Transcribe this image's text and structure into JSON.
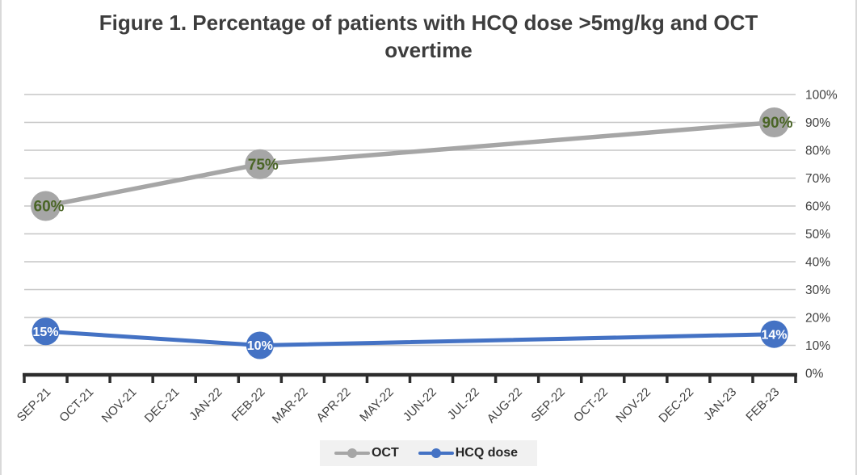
{
  "title": "Figure 1. Percentage of patients with HCQ dose >5mg/kg and OCT overtime",
  "chart_data": {
    "type": "line",
    "categories": [
      "SEP-21",
      "OCT-21",
      "NOV-21",
      "DEC-21",
      "JAN-22",
      "FEB-22",
      "MAR-22",
      "APR-22",
      "MAY-22",
      "JUN-22",
      "JUL-22",
      "AUG-22",
      "SEP-22",
      "OCT-22",
      "NOV-22",
      "DEC-22",
      "JAN-23",
      "FEB-23"
    ],
    "series": [
      {
        "name": "OCT",
        "color": "#a6a6a6",
        "label_color": "#4a6526",
        "points": [
          {
            "category": "SEP-21",
            "value": 60,
            "label": "60%"
          },
          {
            "category": "FEB-22",
            "value": 75,
            "label": "75%"
          },
          {
            "category": "FEB-23",
            "value": 90,
            "label": "90%"
          }
        ]
      },
      {
        "name": "HCQ dose",
        "color": "#4472c4",
        "label_color": "#ffffff",
        "points": [
          {
            "category": "SEP-21",
            "value": 15,
            "label": "15%"
          },
          {
            "category": "FEB-22",
            "value": 10,
            "label": "10%"
          },
          {
            "category": "FEB-23",
            "value": 14,
            "label": "14%"
          }
        ]
      }
    ],
    "y_ticks": [
      {
        "value": 0,
        "label": "0%"
      },
      {
        "value": 10,
        "label": "10%"
      },
      {
        "value": 20,
        "label": "20%"
      },
      {
        "value": 30,
        "label": "30%"
      },
      {
        "value": 40,
        "label": "40%"
      },
      {
        "value": 50,
        "label": "50%"
      },
      {
        "value": 60,
        "label": "60%"
      },
      {
        "value": 70,
        "label": "70%"
      },
      {
        "value": 80,
        "label": "80%"
      },
      {
        "value": 90,
        "label": "90%"
      },
      {
        "value": 100,
        "label": "100%"
      }
    ],
    "ylim": [
      0,
      100
    ],
    "xlabel": "",
    "ylabel": "",
    "grid": true,
    "y_axis_side": "right",
    "x_label_rotation": -45,
    "legend_position": "bottom"
  },
  "colors": {
    "gridline": "#c6c6c6",
    "axis_line": "#2d2d2d",
    "tick_label": "#404040",
    "title": "#3d3d3d",
    "legend_background": "#f1f1f1",
    "legend_text": "#262626"
  }
}
